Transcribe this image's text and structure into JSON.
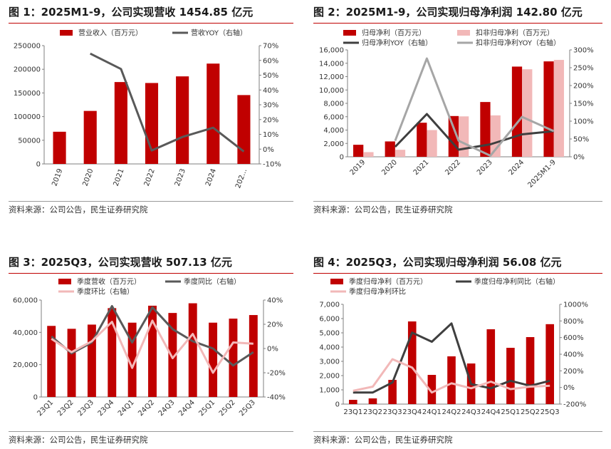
{
  "source_text": "资料来源：公司公告，民生证券研究院",
  "colors": {
    "red": "#c00000",
    "gray": "#595959",
    "pink": "#f2b8b8",
    "lightgray": "#a6a6a6",
    "rule": "#c00000"
  },
  "chart_data": [
    {
      "type": "bar+line",
      "title": "图 1：2025M1-9，公司实现营收 1454.85 亿元",
      "categories": [
        "2019",
        "2020",
        "2021",
        "2022",
        "2023",
        "2024",
        "202..."
      ],
      "series": [
        {
          "name": "营业收入（百万元）",
          "type": "bar",
          "axis": "left",
          "color": "#c00000",
          "values": [
            68000,
            112000,
            173000,
            171000,
            185000,
            212000,
            145485
          ]
        },
        {
          "name": "营收YOY（右轴）",
          "type": "line",
          "axis": "right",
          "color": "#595959",
          "values": [
            null,
            64.6,
            54.2,
            -0.9,
            8.2,
            14.5,
            -1.6
          ]
        }
      ],
      "ylim_left": [
        0,
        250000
      ],
      "yticks_left": [
        0,
        50000,
        100000,
        150000,
        200000,
        250000
      ],
      "ytick_labels_left": [
        "0",
        "50000",
        "100000",
        "150000",
        "200000",
        "250000"
      ],
      "ylim_right": [
        -10,
        70
      ],
      "yticks_right": [
        -10,
        0,
        10,
        20,
        30,
        40,
        50,
        60,
        70
      ],
      "ytick_labels_right": [
        "-10%",
        "0%",
        "10%",
        "20%",
        "30%",
        "40%",
        "50%",
        "60%",
        "70%"
      ],
      "legend_cols": 2
    },
    {
      "type": "bar+line",
      "title": "图 2：2025M1-9，公司实现归母净利润 142.80 亿元",
      "categories": [
        "2019",
        "2020",
        "2021",
        "2022",
        "2023",
        "2024",
        "2025M1-9"
      ],
      "series": [
        {
          "name": "归母净利（百万元）",
          "type": "bar",
          "axis": "left",
          "color": "#c00000",
          "values": [
            1800,
            2300,
            5100,
            6100,
            8200,
            13500,
            14280
          ]
        },
        {
          "name": "扣非归母净利（百万元）",
          "type": "bar",
          "axis": "left",
          "color": "#f2b8b8",
          "values": [
            700,
            1050,
            4000,
            6050,
            6200,
            13100,
            14500
          ]
        },
        {
          "name": "归母净利YOY（右轴）",
          "type": "line",
          "axis": "right",
          "color": "#3f3f3f",
          "values": [
            null,
            28,
            120,
            20,
            35,
            63,
            72
          ]
        },
        {
          "name": "扣非归母净利YOY（右轴）",
          "type": "line",
          "axis": "right",
          "color": "#a6a6a6",
          "values": [
            null,
            45,
            276,
            45,
            3,
            112,
            72
          ]
        }
      ],
      "ylim_left": [
        0,
        16000
      ],
      "yticks_left": [
        0,
        2000,
        4000,
        6000,
        8000,
        10000,
        12000,
        14000,
        16000
      ],
      "ytick_labels_left": [
        "0",
        "2,000",
        "4,000",
        "6,000",
        "8,000",
        "10,000",
        "12,000",
        "14,000",
        "16,000"
      ],
      "ylim_right": [
        0,
        300
      ],
      "yticks_right": [
        0,
        50,
        100,
        150,
        200,
        250,
        300
      ],
      "ytick_labels_right": [
        "0%",
        "50%",
        "100%",
        "150%",
        "200%",
        "250%",
        "300%"
      ],
      "xlabel_rotate": true,
      "legend_cols": 2
    },
    {
      "type": "bar+line",
      "title": "图 3：2025Q3，公司实现营收 507.13 亿元",
      "categories": [
        "23Q1",
        "23Q2",
        "23Q3",
        "23Q4",
        "24Q1",
        "24Q2",
        "24Q3",
        "24Q4",
        "25Q1",
        "25Q2",
        "25Q3"
      ],
      "series": [
        {
          "name": "季度营收（百万元）",
          "type": "bar",
          "axis": "left",
          "color": "#c00000",
          "values": [
            44000,
            42200,
            44800,
            55000,
            46000,
            56500,
            52000,
            58000,
            46000,
            48500,
            50713
          ]
        },
        {
          "name": "季度同比（右轴）",
          "type": "line",
          "axis": "right",
          "color": "#595959",
          "values": [
            10,
            -4,
            5,
            35,
            5,
            34,
            16,
            6,
            0,
            -14,
            -3
          ]
        },
        {
          "name": "季度环比（右轴）",
          "type": "line",
          "axis": "right",
          "color": "#f2b8b8",
          "values": [
            8,
            -3,
            6,
            22,
            -16,
            23,
            -8,
            12,
            -20,
            5,
            4
          ]
        }
      ],
      "ylim_left": [
        0,
        60000
      ],
      "yticks_left": [
        0,
        20000,
        40000,
        60000
      ],
      "ytick_labels_left": [
        "0",
        "20,000",
        "40,000",
        "60,000"
      ],
      "ylim_right": [
        -40,
        40
      ],
      "yticks_right": [
        -40,
        -20,
        0,
        20,
        40
      ],
      "ytick_labels_right": [
        "-40%",
        "-20%",
        "0%",
        "20%",
        "40%"
      ],
      "xlabel_rotate": true,
      "legend_cols": 2
    },
    {
      "type": "bar+line",
      "title": "图 4：2025Q3，公司实现归母净利润 56.08 亿元",
      "categories": [
        "23Q1",
        "23Q2",
        "23Q3",
        "23Q4",
        "24Q1",
        "24Q2",
        "24Q3",
        "24Q4",
        "25Q1",
        "25Q2",
        "25Q3"
      ],
      "series": [
        {
          "name": "季度归母净利（百万元）",
          "type": "bar",
          "axis": "left",
          "color": "#c00000",
          "values": [
            300,
            400,
            1700,
            5800,
            2050,
            3350,
            2850,
            5250,
            3950,
            4700,
            5608
          ]
        },
        {
          "name": "季度归母净利同比（右轴）",
          "type": "line",
          "axis": "right",
          "color": "#3f3f3f",
          "values": [
            -60,
            -60,
            60,
            660,
            550,
            770,
            40,
            -10,
            80,
            20,
            80
          ]
        },
        {
          "name": "季度归母净利环比",
          "type": "line",
          "axis": "right",
          "color": "#f2b8b8",
          "values": [
            -40,
            10,
            340,
            240,
            -60,
            50,
            -10,
            70,
            -20,
            10,
            20
          ]
        }
      ],
      "ylim_left": [
        0,
        7000
      ],
      "yticks_left": [
        0,
        1000,
        2000,
        3000,
        4000,
        5000,
        6000,
        7000
      ],
      "ytick_labels_left": [
        "0",
        "1,000",
        "2,000",
        "3,000",
        "4,000",
        "5,000",
        "6,000",
        "7,000"
      ],
      "ylim_right": [
        -200,
        1000
      ],
      "yticks_right": [
        -200,
        0,
        200,
        400,
        600,
        800,
        1000
      ],
      "ytick_labels_right": [
        "-200%",
        "0%",
        "200%",
        "400%",
        "600%",
        "800%",
        "1000%"
      ],
      "legend_cols": 2
    }
  ]
}
